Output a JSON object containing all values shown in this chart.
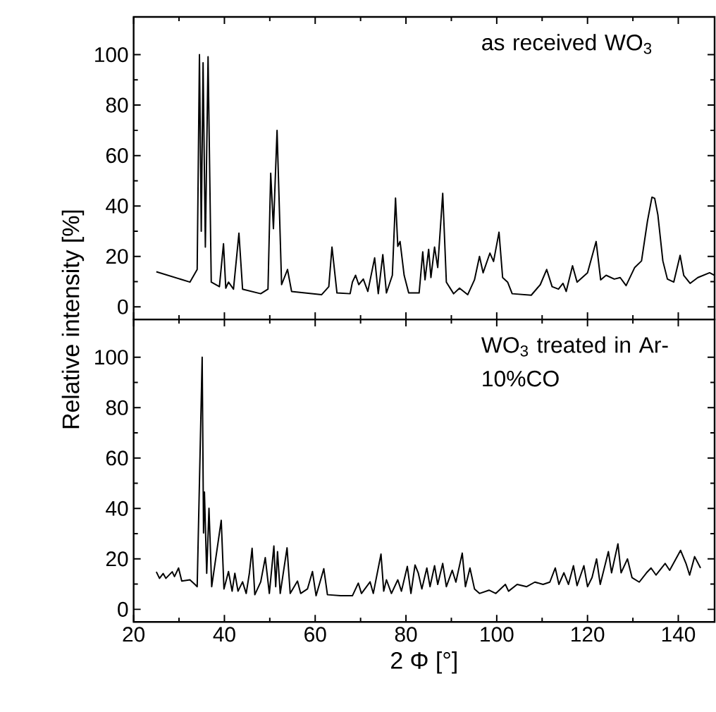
{
  "chart_data": [
    {
      "type": "line",
      "ylabel": "Relative intensity [%]",
      "annotations": [
        "as received WO$_{3}$"
      ],
      "xlim": [
        20,
        148
      ],
      "ylim": [
        -5,
        115
      ],
      "xticks": [
        20,
        40,
        60,
        80,
        100,
        120,
        140
      ],
      "yticks": [
        0,
        20,
        40,
        60,
        80,
        100
      ],
      "tick_labels": "y",
      "x": [
        25.0,
        32.4,
        34.0,
        34.5,
        34.9,
        35.3,
        35.8,
        36.4,
        37.1,
        38.9,
        39.8,
        40.3,
        40.9,
        42.0,
        43.2,
        44.0,
        48.0,
        49.6,
        50.2,
        50.8,
        51.6,
        52.6,
        53.9,
        54.8,
        61.4,
        63.0,
        63.7,
        64.8,
        67.7,
        68.2,
        68.9,
        69.6,
        70.6,
        71.6,
        73.1,
        73.9,
        74.9,
        75.7,
        77.0,
        77.7,
        78.2,
        78.7,
        79.6,
        80.6,
        82.9,
        83.7,
        84.2,
        85.0,
        85.5,
        86.3,
        87.0,
        88.1,
        88.9,
        90.5,
        91.8,
        93.6,
        95.1,
        96.2,
        97.0,
        98.5,
        99.3,
        100.5,
        101.3,
        102.4,
        103.4,
        107.6,
        109.6,
        111.0,
        112.2,
        113.6,
        114.6,
        115.3,
        116.7,
        117.7,
        120.0,
        121.9,
        122.9,
        124.1,
        125.9,
        127.2,
        128.5,
        130.4,
        131.9,
        133.2,
        134.2,
        134.8,
        135.5,
        136.6,
        137.6,
        139.0,
        140.4,
        141.2,
        142.6,
        144.3,
        146.9,
        148.0
      ],
      "series": [
        {
          "color": "#000000",
          "values": [
            13.9,
            9.8,
            14.8,
            100,
            30,
            96.8,
            23.7,
            99.2,
            9.8,
            8,
            25,
            7.4,
            9.8,
            7,
            29.2,
            7,
            5.2,
            7,
            53,
            31,
            70,
            8.8,
            14.8,
            6.1,
            4.8,
            8,
            23.7,
            5.5,
            5.2,
            9.8,
            12.5,
            8.8,
            11,
            6.1,
            19.4,
            5.2,
            20.7,
            5.5,
            12.5,
            43.1,
            24,
            25.9,
            12.5,
            5.5,
            5.5,
            21.8,
            10.7,
            22.8,
            11.6,
            23.7,
            15.6,
            45,
            9.8,
            5.2,
            7.4,
            4.8,
            10.7,
            20,
            13.5,
            21.3,
            18,
            29.6,
            11.6,
            9.8,
            5.2,
            4.6,
            8.8,
            14.8,
            8,
            7,
            9.3,
            6.1,
            16.3,
            9.8,
            13.5,
            25.9,
            10.7,
            12.5,
            11,
            11.6,
            8.4,
            15.6,
            18.2,
            33.9,
            43.5,
            43,
            36.5,
            18.2,
            11,
            9.8,
            20.4,
            12.5,
            9.3,
            11.6,
            13.5,
            12.5
          ]
        }
      ]
    },
    {
      "type": "line",
      "xlabel": "2 Φ [°]",
      "annotations": [
        "WO$_{3}$ treated in Ar-10%CO"
      ],
      "xlim": [
        20,
        148
      ],
      "ylim": [
        -5,
        115
      ],
      "xticks": [
        20,
        40,
        60,
        80,
        100,
        120,
        140
      ],
      "yticks": [
        0,
        20,
        40,
        60,
        80,
        100
      ],
      "x": [
        25.0,
        25.7,
        26.5,
        27.1,
        28.5,
        29.0,
        29.9,
        30.6,
        32.4,
        33.5,
        34.0,
        35.1,
        35.4,
        35.6,
        36.1,
        36.6,
        37.2,
        39.3,
        39.9,
        40.9,
        41.7,
        42.3,
        43.0,
        44.0,
        44.8,
        45.5,
        46.1,
        46.7,
        48.0,
        49.0,
        49.9,
        50.9,
        51.3,
        51.7,
        52.3,
        53.8,
        54.5,
        56.1,
        56.8,
        58.3,
        59.4,
        60.2,
        61.9,
        62.7,
        65.6,
        68.2,
        69.5,
        70.2,
        72.1,
        72.8,
        74.5,
        75.1,
        75.7,
        76.8,
        78.2,
        79.0,
        80.3,
        81.1,
        82.0,
        82.7,
        83.5,
        84.6,
        85.3,
        86.3,
        87.0,
        88.1,
        88.9,
        90.2,
        91.0,
        92.4,
        93.1,
        94.1,
        95.1,
        96.2,
        98.3,
        99.8,
        101.9,
        102.6,
        104.5,
        106.6,
        108.4,
        110.2,
        111.7,
        112.9,
        113.7,
        114.8,
        115.8,
        116.9,
        117.7,
        119.2,
        120.0,
        121.0,
        122.0,
        122.8,
        124.6,
        125.3,
        126.7,
        127.4,
        128.8,
        129.8,
        131.4,
        133.0,
        134.0,
        135.1,
        137.1,
        138.1,
        140.5,
        141.7,
        142.5,
        143.6,
        144.9
      ],
      "series": [
        {
          "color": "#000000",
          "values": [
            14.9,
            12.3,
            14.2,
            12.3,
            14.9,
            13,
            16.4,
            11.2,
            11.7,
            9.9,
            9,
            100,
            30.3,
            46.5,
            14.3,
            40.1,
            9,
            35.3,
            8.1,
            15,
            7.2,
            14.3,
            7.2,
            10.9,
            6.3,
            14.3,
            24.2,
            5.8,
            10.9,
            20.5,
            6.3,
            25.1,
            9,
            22.9,
            6.3,
            24.4,
            6.3,
            11.2,
            6.3,
            8.1,
            15,
            5.4,
            16.1,
            5.8,
            5.4,
            5.4,
            10.4,
            6.3,
            10.9,
            6.3,
            21.9,
            7.2,
            11.7,
            6.3,
            11.7,
            7.2,
            17,
            6.3,
            17.6,
            14.5,
            8.1,
            16.4,
            9,
            17.3,
            9.9,
            18.2,
            9,
            15.5,
            10.8,
            22.3,
            9,
            16.4,
            8.1,
            6.3,
            7.6,
            6.3,
            9.9,
            7.2,
            9.9,
            9,
            10.8,
            9.9,
            10.8,
            16.4,
            9.9,
            14.5,
            9.9,
            17.3,
            9.4,
            17.3,
            9,
            12.6,
            20,
            9.9,
            22.9,
            14.5,
            26,
            14.5,
            20,
            12.6,
            10.8,
            14.5,
            16.4,
            13.6,
            18.2,
            15.5,
            23.4,
            18.2,
            13.6,
            20.9,
            16.4
          ]
        }
      ]
    }
  ]
}
